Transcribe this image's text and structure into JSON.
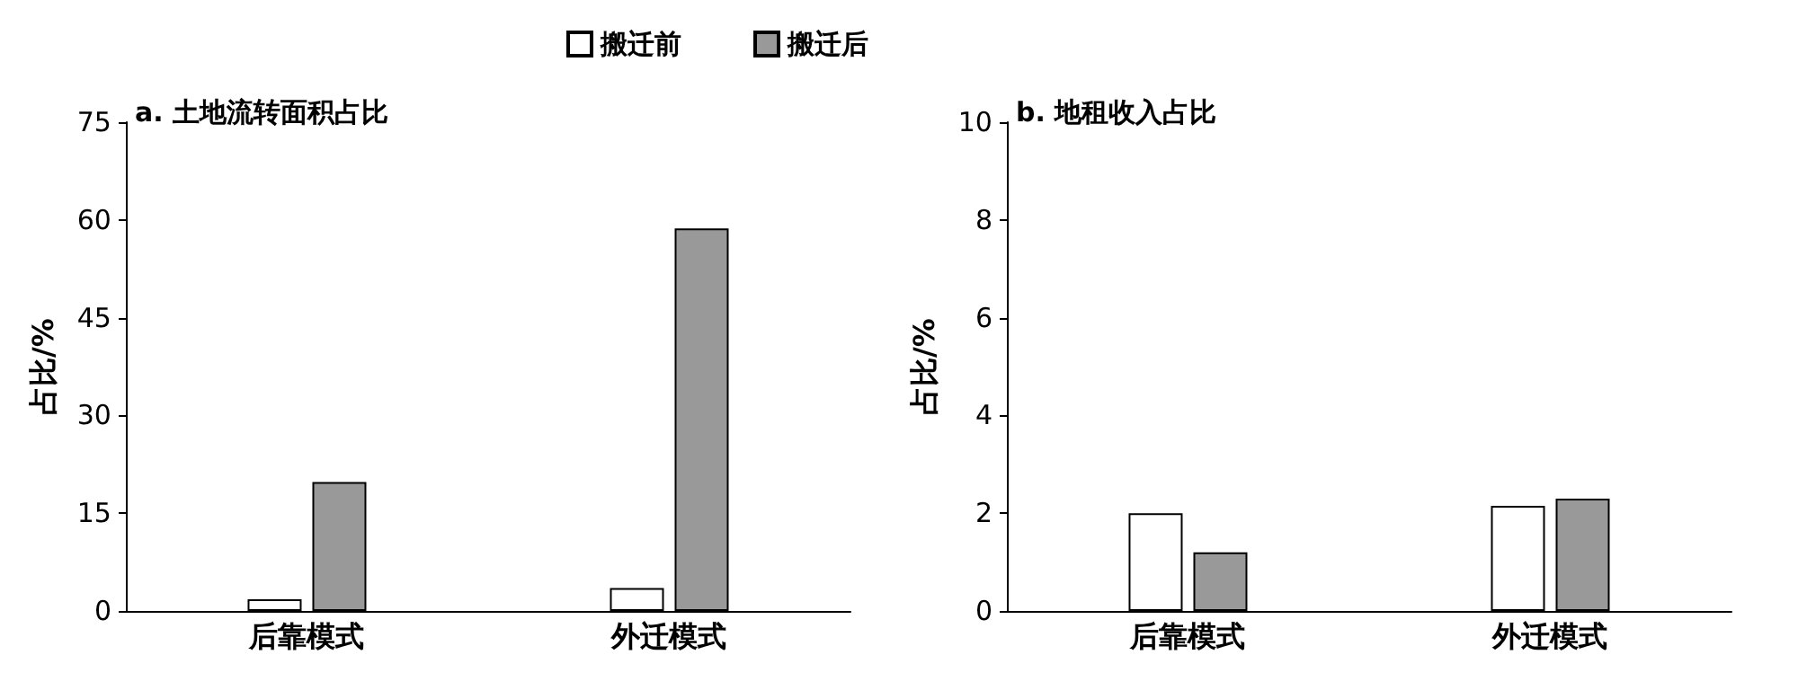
{
  "chart_data": [
    {
      "type": "bar",
      "title": "a. 土地流转面积占比",
      "ylabel": "占比/%",
      "categories": [
        "后靠模式",
        "外迁模式"
      ],
      "series": [
        {
          "name": "搬迁前",
          "color": "#ffffff",
          "values": [
            1.8,
            3.5
          ]
        },
        {
          "name": "搬迁后",
          "color": "#999999",
          "values": [
            19.8,
            58.7
          ]
        }
      ],
      "ylim": [
        0,
        75
      ],
      "yticks": [
        0,
        15,
        30,
        45,
        60,
        75
      ],
      "legend": "top right"
    },
    {
      "type": "bar",
      "title": "b. 地租收入占比",
      "ylabel": "占比/%",
      "categories": [
        "后靠模式",
        "外迁模式"
      ],
      "series": [
        {
          "color": "#ffffff",
          "values": [
            2.0,
            2.15
          ]
        },
        {
          "color": "#999999",
          "values": [
            1.2,
            2.3
          ]
        }
      ],
      "ylim": [
        0,
        10
      ],
      "yticks": [
        0,
        2,
        4,
        6,
        8,
        10
      ]
    }
  ]
}
